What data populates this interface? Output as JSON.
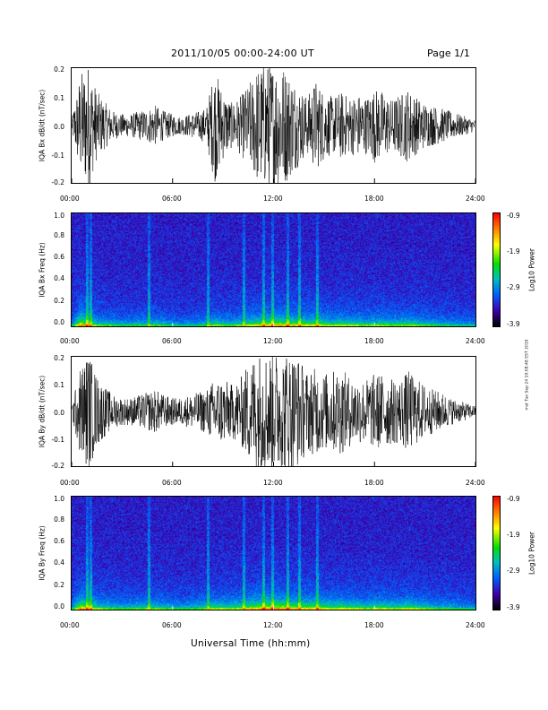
{
  "header": {
    "title": "2011/10/05   00:00-24:00 UT",
    "page": "Page 1/1"
  },
  "stamp": "mst Tue Sep 24 19:08:48 EST 2019",
  "xlabel": "Universal Time (hh:mm)",
  "x_ticks": [
    "00:00",
    "06:00",
    "12:00",
    "18:00",
    "24:00"
  ],
  "colors": {
    "trace": "#000000",
    "frame": "#000000"
  },
  "chart_data": [
    {
      "type": "line",
      "ylabel": "IQA Bx dB/dt (nT/sec)",
      "xlim": [
        0,
        24
      ],
      "ylim": [
        -0.2,
        0.2
      ],
      "y_ticks": [
        "0.2",
        "0.1",
        "0.0",
        "-0.1",
        "-0.2"
      ],
      "series": [
        {
          "x": [
            0,
            0.5,
            1,
            1.5,
            2,
            2.5,
            3,
            3.5,
            4,
            4.5,
            5,
            5.5,
            6,
            6.5,
            7,
            7.5,
            8,
            8.5,
            9,
            9.5,
            10,
            10.5,
            11,
            11.5,
            12,
            12.5,
            13,
            13.5,
            14,
            14.5,
            15,
            15.5,
            16,
            16.5,
            17,
            17.5,
            18,
            18.5,
            19,
            19.5,
            20,
            20.5,
            21,
            21.5,
            22,
            22.5,
            23,
            23.5,
            24
          ],
          "envelope": [
            0.02,
            0.18,
            0.22,
            0.12,
            0.08,
            0.05,
            0.04,
            0.04,
            0.05,
            0.06,
            0.07,
            0.05,
            0.04,
            0.03,
            0.04,
            0.05,
            0.06,
            0.2,
            0.12,
            0.08,
            0.1,
            0.14,
            0.2,
            0.22,
            0.22,
            0.22,
            0.18,
            0.14,
            0.1,
            0.16,
            0.12,
            0.1,
            0.12,
            0.1,
            0.11,
            0.1,
            0.13,
            0.12,
            0.09,
            0.11,
            0.13,
            0.1,
            0.08,
            0.07,
            0.06,
            0.05,
            0.04,
            0.03,
            0.02
          ]
        }
      ]
    },
    {
      "type": "heatmap",
      "ylabel": "IQA Bx Freq (Hz)",
      "xlim": [
        0,
        24
      ],
      "ylim": [
        0.0,
        1.0
      ],
      "y_ticks": [
        "1.0",
        "0.8",
        "0.6",
        "0.4",
        "0.2",
        "0.0"
      ],
      "colorbar": {
        "label": "Log10 Power",
        "ticks": [
          "-0.9",
          "-1.9",
          "-2.9",
          "-3.9"
        ],
        "range": [
          -3.9,
          -0.9
        ]
      },
      "activity": [
        0.3,
        0.9,
        0.7,
        0.5,
        0.45,
        0.4,
        0.38,
        0.38,
        0.4,
        0.42,
        0.45,
        0.4,
        0.35,
        0.3,
        0.32,
        0.35,
        0.4,
        0.55,
        0.45,
        0.45,
        0.5,
        0.6,
        0.7,
        0.75,
        0.8,
        0.8,
        0.75,
        0.7,
        0.65,
        0.7,
        0.6,
        0.55,
        0.6,
        0.55,
        0.55,
        0.5,
        0.55,
        0.55,
        0.5,
        0.5,
        0.55,
        0.5,
        0.45,
        0.4,
        0.38,
        0.35,
        0.32,
        0.3,
        0.3
      ]
    },
    {
      "type": "line",
      "ylabel": "IQA By dB/dt (nT/sec)",
      "xlim": [
        0,
        24
      ],
      "ylim": [
        -0.2,
        0.2
      ],
      "y_ticks": [
        "0.2",
        "0.1",
        "0.0",
        "-0.1",
        "-0.2"
      ],
      "series": [
        {
          "x": [
            0,
            0.5,
            1,
            1.5,
            2,
            2.5,
            3,
            3.5,
            4,
            4.5,
            5,
            5.5,
            6,
            6.5,
            7,
            7.5,
            8,
            8.5,
            9,
            9.5,
            10,
            10.5,
            11,
            11.5,
            12,
            12.5,
            13,
            13.5,
            14,
            14.5,
            15,
            15.5,
            16,
            16.5,
            17,
            17.5,
            18,
            18.5,
            19,
            19.5,
            20,
            20.5,
            21,
            21.5,
            22,
            22.5,
            23,
            23.5,
            24
          ],
          "envelope": [
            0.02,
            0.16,
            0.22,
            0.13,
            0.09,
            0.06,
            0.05,
            0.05,
            0.06,
            0.07,
            0.08,
            0.06,
            0.05,
            0.05,
            0.06,
            0.07,
            0.08,
            0.12,
            0.12,
            0.1,
            0.12,
            0.18,
            0.22,
            0.22,
            0.22,
            0.22,
            0.22,
            0.2,
            0.15,
            0.16,
            0.14,
            0.15,
            0.16,
            0.13,
            0.12,
            0.12,
            0.14,
            0.14,
            0.12,
            0.12,
            0.15,
            0.12,
            0.1,
            0.08,
            0.07,
            0.05,
            0.04,
            0.03,
            0.02
          ]
        }
      ]
    },
    {
      "type": "heatmap",
      "ylabel": "IQA By Freq (Hz)",
      "xlim": [
        0,
        24
      ],
      "ylim": [
        0.0,
        1.0
      ],
      "y_ticks": [
        "1.0",
        "0.8",
        "0.6",
        "0.4",
        "0.2",
        "0.0"
      ],
      "colorbar": {
        "label": "Log10 Power",
        "ticks": [
          "-0.9",
          "-1.9",
          "-2.9",
          "-3.9"
        ],
        "range": [
          -3.9,
          -0.9
        ]
      },
      "activity": [
        0.3,
        0.9,
        0.75,
        0.55,
        0.5,
        0.45,
        0.42,
        0.42,
        0.45,
        0.48,
        0.5,
        0.45,
        0.4,
        0.38,
        0.4,
        0.45,
        0.5,
        0.6,
        0.55,
        0.55,
        0.6,
        0.7,
        0.8,
        0.85,
        0.85,
        0.85,
        0.8,
        0.75,
        0.7,
        0.75,
        0.65,
        0.6,
        0.65,
        0.6,
        0.6,
        0.55,
        0.6,
        0.6,
        0.55,
        0.55,
        0.6,
        0.55,
        0.5,
        0.45,
        0.42,
        0.4,
        0.36,
        0.33,
        0.3
      ]
    }
  ]
}
